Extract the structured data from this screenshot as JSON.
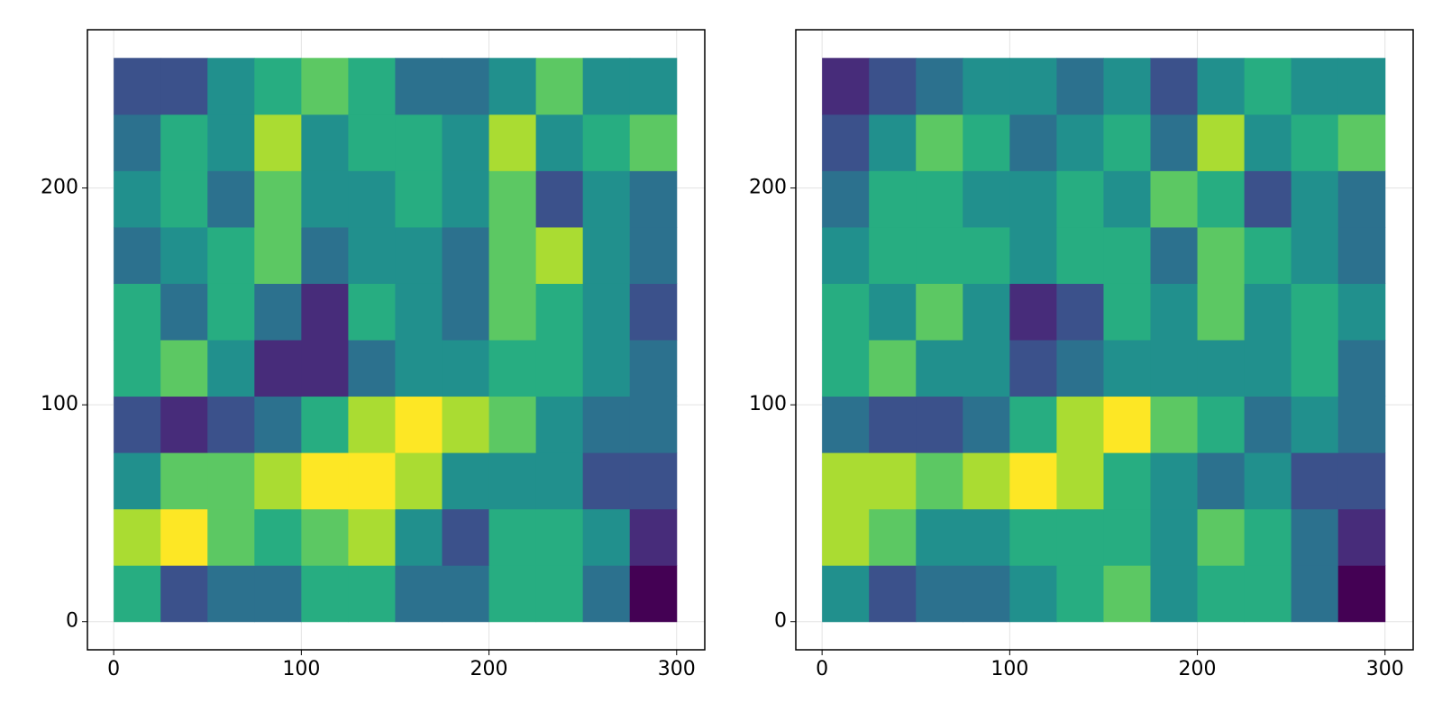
{
  "chart_data": [
    {
      "type": "heatmap",
      "colormap": "viridis",
      "grid": true,
      "x": [
        12.5,
        37.5,
        62.5,
        87.5,
        112.5,
        137.5,
        162.5,
        187.5,
        212.5,
        237.5,
        262.5,
        287.5
      ],
      "y": [
        13,
        39,
        65,
        91,
        117,
        143,
        169,
        195,
        221,
        247
      ],
      "z": [
        [
          0.6,
          0.3,
          0.4,
          0.4,
          0.6,
          0.6,
          0.4,
          0.4,
          0.6,
          0.6,
          0.4,
          0.1
        ],
        [
          0.8,
          0.9,
          0.7,
          0.6,
          0.7,
          0.8,
          0.5,
          0.3,
          0.6,
          0.6,
          0.5,
          0.2
        ],
        [
          0.5,
          0.7,
          0.7,
          0.8,
          0.9,
          0.9,
          0.8,
          0.5,
          0.5,
          0.5,
          0.3,
          0.3
        ],
        [
          0.3,
          0.2,
          0.3,
          0.4,
          0.6,
          0.8,
          0.9,
          0.8,
          0.7,
          0.5,
          0.4,
          0.4
        ],
        [
          0.6,
          0.7,
          0.5,
          0.2,
          0.2,
          0.4,
          0.5,
          0.5,
          0.6,
          0.6,
          0.5,
          0.4
        ],
        [
          0.6,
          0.4,
          0.6,
          0.4,
          0.2,
          0.6,
          0.5,
          0.4,
          0.7,
          0.6,
          0.5,
          0.3
        ],
        [
          0.4,
          0.5,
          0.6,
          0.7,
          0.4,
          0.5,
          0.5,
          0.4,
          0.7,
          0.8,
          0.5,
          0.4
        ],
        [
          0.5,
          0.6,
          0.4,
          0.7,
          0.5,
          0.5,
          0.6,
          0.5,
          0.7,
          0.3,
          0.5,
          0.4
        ],
        [
          0.4,
          0.6,
          0.5,
          0.8,
          0.5,
          0.6,
          0.6,
          0.5,
          0.8,
          0.5,
          0.6,
          0.7
        ],
        [
          0.3,
          0.3,
          0.5,
          0.6,
          0.7,
          0.6,
          0.4,
          0.4,
          0.5,
          0.7,
          0.5,
          0.5
        ]
      ],
      "xlim": [
        -14,
        315
      ],
      "ylim": [
        -13,
        273
      ],
      "xticks": [
        0,
        100,
        200,
        300
      ],
      "yticks": [
        0,
        100,
        200
      ]
    },
    {
      "type": "heatmap",
      "colormap": "viridis",
      "grid": true,
      "x": [
        12.5,
        37.5,
        62.5,
        87.5,
        112.5,
        137.5,
        162.5,
        187.5,
        212.5,
        237.5,
        262.5,
        287.5
      ],
      "y": [
        13,
        39,
        65,
        91,
        117,
        143,
        169,
        195,
        221,
        247
      ],
      "z": [
        [
          0.5,
          0.3,
          0.4,
          0.4,
          0.5,
          0.6,
          0.7,
          0.5,
          0.6,
          0.6,
          0.4,
          0.1
        ],
        [
          0.8,
          0.7,
          0.5,
          0.5,
          0.6,
          0.6,
          0.6,
          0.5,
          0.7,
          0.6,
          0.4,
          0.2
        ],
        [
          0.8,
          0.8,
          0.7,
          0.8,
          0.9,
          0.8,
          0.6,
          0.5,
          0.4,
          0.5,
          0.3,
          0.3
        ],
        [
          0.4,
          0.3,
          0.3,
          0.4,
          0.6,
          0.8,
          0.9,
          0.7,
          0.6,
          0.4,
          0.5,
          0.4
        ],
        [
          0.6,
          0.7,
          0.5,
          0.5,
          0.3,
          0.4,
          0.5,
          0.5,
          0.5,
          0.5,
          0.6,
          0.4
        ],
        [
          0.6,
          0.5,
          0.7,
          0.5,
          0.2,
          0.3,
          0.6,
          0.5,
          0.7,
          0.5,
          0.6,
          0.5
        ],
        [
          0.5,
          0.6,
          0.6,
          0.6,
          0.5,
          0.6,
          0.6,
          0.4,
          0.7,
          0.6,
          0.5,
          0.4
        ],
        [
          0.4,
          0.6,
          0.6,
          0.5,
          0.5,
          0.6,
          0.5,
          0.7,
          0.6,
          0.3,
          0.5,
          0.4
        ],
        [
          0.3,
          0.5,
          0.7,
          0.6,
          0.4,
          0.5,
          0.6,
          0.4,
          0.8,
          0.5,
          0.6,
          0.7
        ],
        [
          0.2,
          0.3,
          0.4,
          0.5,
          0.5,
          0.4,
          0.5,
          0.3,
          0.5,
          0.6,
          0.5,
          0.5
        ]
      ],
      "xlim": [
        -14,
        315
      ],
      "ylim": [
        -13,
        273
      ],
      "xticks": [
        0,
        100,
        200,
        300
      ],
      "yticks": [
        0,
        100,
        200
      ]
    }
  ]
}
